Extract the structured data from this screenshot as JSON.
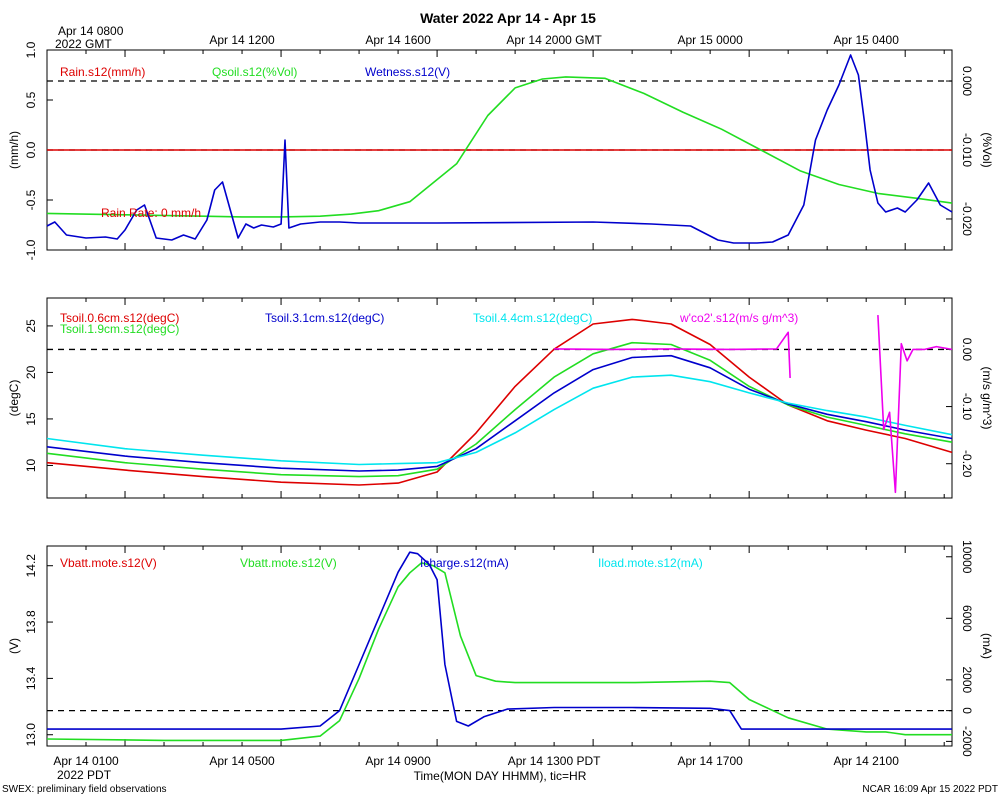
{
  "title": "Water 2022 Apr 14 - Apr 15",
  "top_axis": {
    "first_label_line1": "Apr 14 0800",
    "first_label_line2": "2022 GMT",
    "labels": [
      "Apr 14 1200",
      "Apr 14 1600",
      "Apr 14 2000 GMT",
      "Apr 15 0000",
      "Apr 15 0400"
    ]
  },
  "bottom_axis": {
    "labels": [
      "Apr 14 0100",
      "Apr 14 0500",
      "Apr 14 0900",
      "Apr 14 1300 PDT",
      "Apr 14 1700",
      "Apr 14 2100"
    ],
    "year_label": "2022 PDT",
    "xlabel": "Time(MON DAY HHMM), tic=HR"
  },
  "footer": {
    "left": "SWEX: preliminary field observations",
    "right": "NCAR 16:09 Apr 15 2022 PDT"
  },
  "colors": {
    "red": "#dd0000",
    "green": "#22dd22",
    "blue": "#0000cc",
    "cyan": "#00e5ee",
    "magenta": "#ee00ee",
    "black": "#000000"
  },
  "chart_data": [
    {
      "type": "line",
      "x_unit": "hours PDT on Apr 14",
      "xlim": [
        0,
        23.2
      ],
      "ylabel_left": "(mm/h)",
      "ylabel_right": "(%Vol)",
      "ylim_left": [
        -1.0,
        1.0
      ],
      "ylim_right": [
        -0.0245,
        0.0045
      ],
      "yticks_left": [
        -1.0,
        -0.5,
        0.0,
        0.5,
        1.0
      ],
      "yticks_left_labels": [
        "-1.0",
        "-0.5",
        "0.0",
        "0.5",
        "1.0"
      ],
      "yticks_right": [
        -0.02,
        -0.01,
        0.0
      ],
      "yticks_right_labels": [
        "-0.020",
        "-0.010",
        "0.000"
      ],
      "ref_left": 0.0,
      "ref_right": 0.0,
      "annotation": "Rain Rate: 0 mm/h",
      "series": [
        {
          "name": "Rain.s12(mm/h)",
          "color": "#dd0000",
          "axis": "left",
          "x": [
            0,
            23.2
          ],
          "y": [
            0,
            0
          ]
        },
        {
          "name": "Qsoil.s12(%Vol)",
          "color": "#22dd22",
          "axis": "right",
          "x": [
            0,
            2,
            4,
            5,
            6,
            7,
            7.8,
            8.5,
            9.3,
            10.5,
            11.3,
            12,
            12.7,
            13.3,
            14.3,
            15.3,
            16.3,
            17.3,
            18.3,
            19.3,
            20.3,
            21.3,
            22.3,
            23.2
          ],
          "y": [
            -0.0192,
            -0.0194,
            -0.0196,
            -0.0197,
            -0.0197,
            -0.0196,
            -0.0193,
            -0.0188,
            -0.0175,
            -0.012,
            -0.005,
            -0.001,
            0.0003,
            0.0006,
            0.0004,
            -0.0018,
            -0.0045,
            -0.007,
            -0.01,
            -0.013,
            -0.015,
            -0.0163,
            -0.017,
            -0.0177
          ]
        },
        {
          "name": "Wetness.s12(V)",
          "color": "#0000cc",
          "axis": "left",
          "x": [
            0,
            0.2,
            0.5,
            1.0,
            1.5,
            1.8,
            2.0,
            2.3,
            2.5,
            2.8,
            3.2,
            3.5,
            3.8,
            4.1,
            4.3,
            4.5,
            4.7,
            4.9,
            5.1,
            5.3,
            5.5,
            5.8,
            6.0,
            6.1,
            6.2,
            6.5,
            7.0,
            7.5,
            8,
            10,
            14,
            15.5,
            16.5,
            17.2,
            17.6,
            18.2,
            18.6,
            19.0,
            19.4,
            19.7,
            20.0,
            20.3,
            20.6,
            20.8,
            20.95,
            21.1,
            21.3,
            21.5,
            21.8,
            22.0,
            22.3,
            22.6,
            22.9,
            23.2
          ],
          "y": [
            -0.76,
            -0.72,
            -0.85,
            -0.88,
            -0.87,
            -0.89,
            -0.8,
            -0.6,
            -0.55,
            -0.88,
            -0.9,
            -0.85,
            -0.89,
            -0.7,
            -0.4,
            -0.32,
            -0.6,
            -0.88,
            -0.74,
            -0.78,
            -0.75,
            -0.77,
            -0.74,
            0.1,
            -0.78,
            -0.74,
            -0.72,
            -0.72,
            -0.73,
            -0.73,
            -0.72,
            -0.74,
            -0.76,
            -0.9,
            -0.93,
            -0.93,
            -0.92,
            -0.85,
            -0.55,
            0.1,
            0.4,
            0.65,
            0.95,
            0.75,
            0.3,
            -0.2,
            -0.53,
            -0.62,
            -0.58,
            -0.62,
            -0.5,
            -0.33,
            -0.55,
            -0.62
          ]
        }
      ]
    },
    {
      "type": "line",
      "x_unit": "hours PDT on Apr 14",
      "xlim": [
        0,
        23.2
      ],
      "ylabel_left": "(degC)",
      "ylabel_right": "(m/s g/m^3)",
      "ylim_left": [
        6.5,
        28
      ],
      "ylim_right": [
        -0.26,
        0.09
      ],
      "yticks_left": [
        10,
        15,
        20,
        25
      ],
      "yticks_left_labels": [
        "10",
        "15",
        "20",
        "25"
      ],
      "yticks_right": [
        -0.2,
        -0.1,
        0.0
      ],
      "yticks_right_labels": [
        "-0.20",
        "-0.10",
        "0.00"
      ],
      "ref_right": 0.0,
      "series": [
        {
          "name": "Tsoil.0.6cm.s12(degC)",
          "color": "#dd0000",
          "axis": "left",
          "x": [
            0,
            2,
            4,
            6,
            8,
            9,
            10,
            11,
            12,
            13,
            14,
            15,
            16,
            17,
            18,
            19,
            20,
            21,
            22,
            23.2
          ],
          "y": [
            10.3,
            9.5,
            8.8,
            8.2,
            7.9,
            8.1,
            9.3,
            13.5,
            18.5,
            22.5,
            25.2,
            25.7,
            25.2,
            23.0,
            19.5,
            16.5,
            14.8,
            13.8,
            12.9,
            11.4
          ]
        },
        {
          "name": "Tsoil.1.9cm.s12(degC)",
          "color": "#22dd22",
          "axis": "left",
          "x": [
            0,
            2,
            4,
            6,
            8,
            9,
            10,
            11,
            12,
            13,
            14,
            15,
            16,
            17,
            18,
            19,
            20,
            21,
            22,
            23.2
          ],
          "y": [
            11.3,
            10.3,
            9.6,
            9.0,
            8.8,
            8.9,
            9.6,
            12.3,
            16.0,
            19.5,
            22.0,
            23.2,
            23.0,
            21.3,
            18.5,
            16.5,
            15.2,
            14.3,
            13.4,
            12.5
          ]
        },
        {
          "name": "Tsoil.3.1cm.s12(degC)",
          "color": "#0000cc",
          "axis": "left",
          "x": [
            0,
            2,
            4,
            6,
            8,
            9,
            10,
            11,
            12,
            13,
            14,
            15,
            16,
            17,
            18,
            19,
            20,
            21,
            22,
            23.2
          ],
          "y": [
            12.0,
            11.0,
            10.3,
            9.7,
            9.4,
            9.5,
            9.9,
            11.8,
            14.8,
            17.8,
            20.3,
            21.6,
            21.8,
            20.5,
            18.2,
            16.6,
            15.5,
            14.7,
            13.8,
            12.9
          ]
        },
        {
          "name": "Tsoil.4.4cm.s12(degC)",
          "color": "#00e5ee",
          "axis": "left",
          "x": [
            0,
            2,
            4,
            6,
            8,
            9,
            10,
            11,
            12,
            13,
            14,
            15,
            16,
            17,
            18,
            19,
            20,
            21,
            22,
            23.2
          ],
          "y": [
            12.9,
            11.8,
            11.1,
            10.5,
            10.1,
            10.2,
            10.3,
            11.4,
            13.5,
            16.0,
            18.3,
            19.5,
            19.7,
            19.0,
            17.8,
            16.7,
            15.9,
            15.2,
            14.3,
            13.3
          ]
        },
        {
          "name": "w'co2'.s12(m/s g/m^3)",
          "color": "#ee00ee",
          "axis": "right",
          "segments": [
            {
              "x": [
                13.0,
                14.5,
                16.0,
                17.5,
                18.7,
                19.0,
                19.05
              ],
              "y": [
                0.001,
                0.0,
                0.001,
                0.0,
                0.001,
                0.03,
                -0.05
              ]
            },
            {
              "x": [
                21.3,
                21.45,
                21.6,
                21.75,
                21.9,
                22.05,
                22.2,
                22.5,
                22.8,
                23.2
              ],
              "y": [
                0.06,
                -0.14,
                -0.11,
                -0.25,
                0.01,
                -0.02,
                0.0,
                0.0,
                0.005,
                0.0
              ]
            }
          ]
        }
      ]
    },
    {
      "type": "line",
      "x_unit": "hours PDT on Apr 14",
      "xlim": [
        0,
        23.2
      ],
      "ylabel_left": "(V)",
      "ylabel_right": "(mA)",
      "ylim_left": [
        12.92,
        14.34
      ],
      "ylim_right": [
        -2300,
        10700
      ],
      "yticks_left": [
        13.0,
        13.4,
        13.8,
        14.2
      ],
      "yticks_left_labels": [
        "13.0",
        "13.4",
        "13.8",
        "14.2"
      ],
      "yticks_right": [
        -2000,
        0,
        2000,
        6000,
        10000
      ],
      "yticks_right_labels": [
        "-2000",
        "0",
        "2000",
        "6000",
        "10000"
      ],
      "ref_right": 0,
      "series": [
        {
          "name": "Vbatt.mote.s12(V)",
          "color": "#dd0000",
          "axis": "left",
          "x": [],
          "y": []
        },
        {
          "name": "Vbatt.mote.s12(V)",
          "color": "#22dd22",
          "axis": "left",
          "x": [
            0,
            3,
            6,
            7,
            7.5,
            8,
            8.5,
            9,
            9.3,
            9.6,
            9.9,
            10.2,
            10.6,
            11,
            11.5,
            12,
            15,
            17,
            17.5,
            18,
            19,
            20,
            21,
            21.5,
            22,
            23.2
          ],
          "y": [
            12.97,
            12.96,
            12.96,
            12.99,
            13.1,
            13.4,
            13.75,
            14.05,
            14.15,
            14.22,
            14.2,
            14.15,
            13.7,
            13.42,
            13.38,
            13.37,
            13.37,
            13.38,
            13.37,
            13.25,
            13.12,
            13.04,
            13.02,
            13.02,
            13.0,
            13.0
          ]
        },
        {
          "name": "Icharge.s12(mA)",
          "color": "#0000cc",
          "axis": "right",
          "x": [
            0,
            6,
            7,
            7.5,
            8,
            8.5,
            9,
            9.3,
            9.5,
            9.8,
            10.0,
            10.2,
            10.5,
            10.8,
            11.2,
            11.8,
            13,
            15,
            17,
            17.5,
            17.8,
            18.5,
            21,
            23.2
          ],
          "y": [
            -1200,
            -1200,
            -1000,
            0,
            3000,
            6000,
            9000,
            10300,
            10200,
            9500,
            8500,
            3000,
            -700,
            -1000,
            -400,
            100,
            200,
            200,
            150,
            0,
            -1200,
            -1200,
            -1200,
            -1200
          ]
        },
        {
          "name": "Iload.mote.s12(mA)",
          "color": "#00e5ee",
          "axis": "right",
          "x": [],
          "y": []
        }
      ]
    }
  ]
}
